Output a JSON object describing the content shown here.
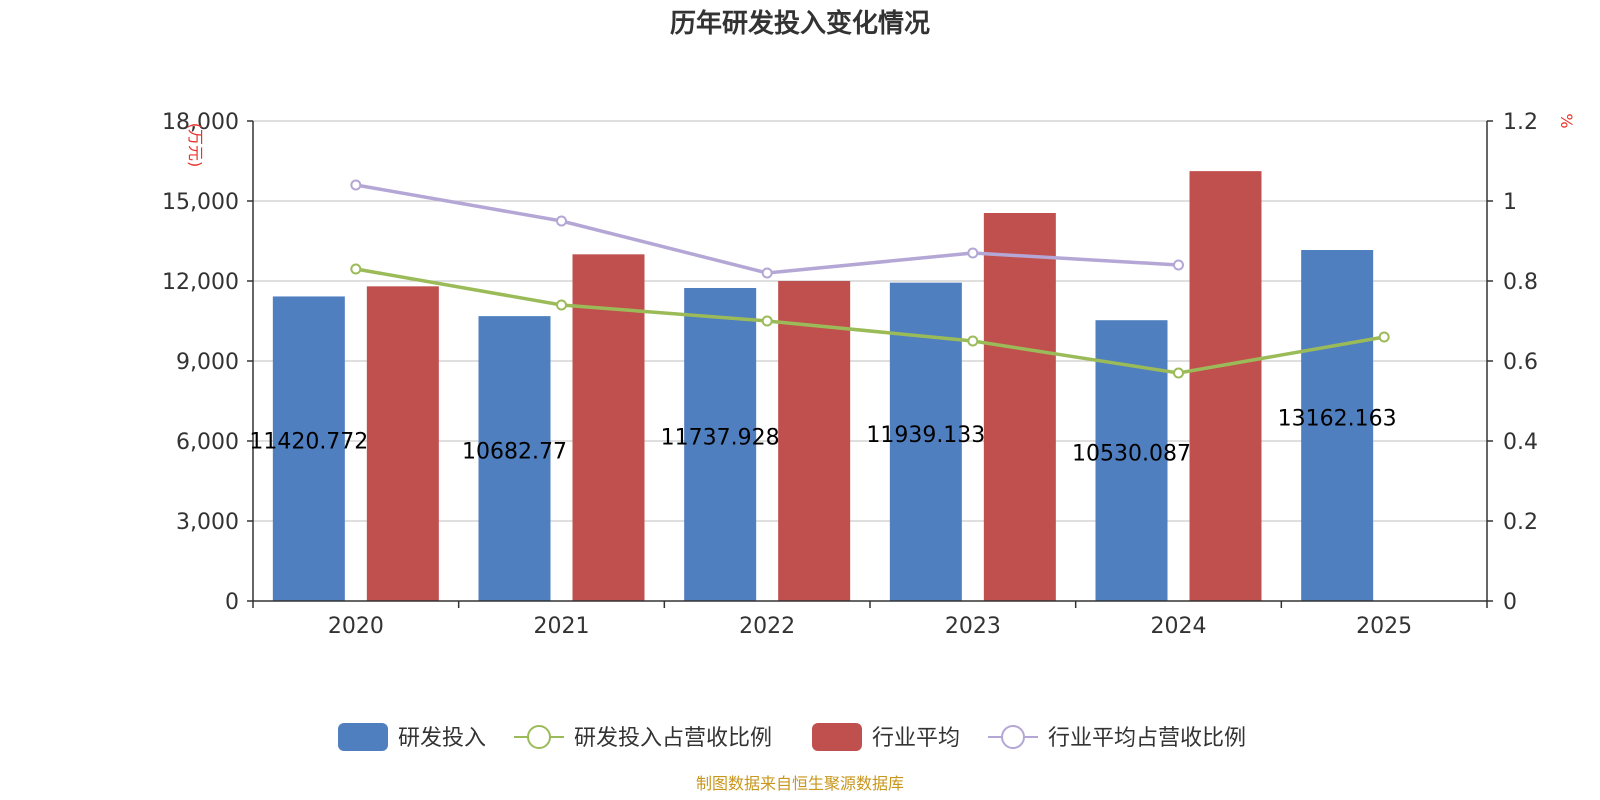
{
  "chart_data": {
    "type": "bar",
    "title": "历年研发投入变化情况",
    "categories": [
      "2020",
      "2021",
      "2022",
      "2023",
      "2024",
      "2025"
    ],
    "y_left": {
      "unit": "(万元)",
      "ticks": [
        "0",
        "3,000",
        "6,000",
        "9,000",
        "12,000",
        "15,000",
        "18,000"
      ],
      "range": [
        0,
        18000
      ]
    },
    "y_right": {
      "unit": "%",
      "ticks": [
        "0",
        "0.2",
        "0.4",
        "0.6",
        "0.8",
        "1",
        "1.2"
      ],
      "range": [
        0,
        1.2
      ]
    },
    "series": [
      {
        "name": "研发投入",
        "kind": "bar",
        "axis": "left",
        "color": "#4f7fbf",
        "values": [
          11420.772,
          10682.77,
          11737.928,
          11939.133,
          10530.087,
          13162.163
        ],
        "labels": [
          "11420.772",
          "10682.77",
          "11737.928",
          "11939.133",
          "10530.087",
          "13162.163"
        ]
      },
      {
        "name": "研发投入占营收比例",
        "kind": "line",
        "axis": "right",
        "color": "#9bbb59",
        "values": [
          0.83,
          0.74,
          0.7,
          0.65,
          0.57,
          0.66
        ]
      },
      {
        "name": "行业平均",
        "kind": "bar",
        "axis": "left",
        "color": "#c0504d",
        "values": [
          11800,
          13000,
          12000,
          14550,
          16120,
          null
        ]
      },
      {
        "name": "行业平均占营收比例",
        "kind": "line",
        "axis": "right",
        "color": "#b4a7d6",
        "values": [
          1.04,
          0.95,
          0.82,
          0.87,
          0.84,
          null
        ]
      }
    ],
    "grid": true,
    "legend_position": "bottom",
    "source": "制图数据来自恒生聚源数据库"
  }
}
